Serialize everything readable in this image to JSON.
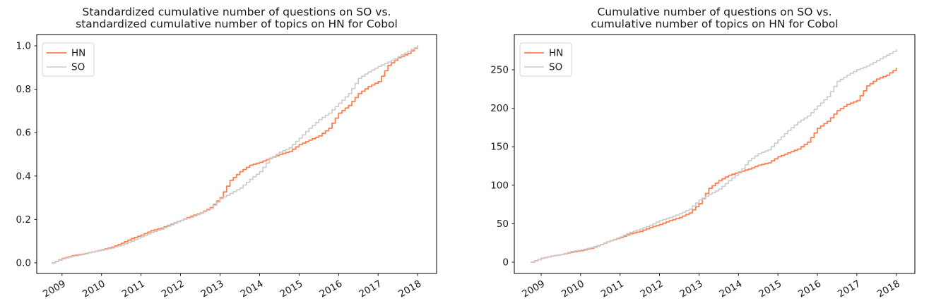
{
  "page": {
    "background": "#ffffff"
  },
  "colors": {
    "hn": "#FF7F50",
    "so": "#CBCBCB",
    "axis": "#000000",
    "text": "#1a1a1a",
    "legend_border": "#d5d5d5"
  },
  "chart_data": [
    {
      "type": "line",
      "title_lines": [
        "Standardized cumulative number of questions on SO vs.",
        "standardized cumulative number of topics on HN for Cobol"
      ],
      "xlabel": "",
      "ylabel": "",
      "grid": false,
      "x": [
        2008.75,
        2009.0,
        2009.25,
        2009.5,
        2009.75,
        2010.0,
        2010.25,
        2010.5,
        2010.75,
        2011.0,
        2011.25,
        2011.5,
        2011.75,
        2012.0,
        2012.25,
        2012.5,
        2012.75,
        2013.0,
        2013.25,
        2013.5,
        2013.75,
        2014.0,
        2014.25,
        2014.5,
        2014.75,
        2015.0,
        2015.25,
        2015.5,
        2015.75,
        2016.0,
        2016.25,
        2016.5,
        2016.75,
        2017.0,
        2017.25,
        2017.5,
        2017.75,
        2018.0
      ],
      "series": [
        {
          "name": "HN",
          "color_key": "hn",
          "stroke_width": 1.8,
          "values": [
            0.0,
            0.02,
            0.033,
            0.04,
            0.05,
            0.06,
            0.072,
            0.09,
            0.112,
            0.128,
            0.148,
            0.16,
            0.178,
            0.196,
            0.215,
            0.23,
            0.255,
            0.3,
            0.38,
            0.42,
            0.45,
            0.463,
            0.482,
            0.5,
            0.513,
            0.545,
            0.565,
            0.585,
            0.62,
            0.69,
            0.725,
            0.78,
            0.812,
            0.835,
            0.91,
            0.945,
            0.965,
            1.0
          ]
        },
        {
          "name": "SO",
          "color_key": "so",
          "stroke_width": 1.6,
          "values": [
            0.0,
            0.018,
            0.03,
            0.038,
            0.05,
            0.058,
            0.068,
            0.082,
            0.1,
            0.12,
            0.14,
            0.155,
            0.175,
            0.196,
            0.21,
            0.228,
            0.25,
            0.295,
            0.32,
            0.345,
            0.385,
            0.42,
            0.48,
            0.51,
            0.53,
            0.575,
            0.62,
            0.66,
            0.69,
            0.735,
            0.78,
            0.85,
            0.88,
            0.905,
            0.925,
            0.95,
            0.975,
            1.0
          ]
        }
      ],
      "xticks": [
        2009,
        2010,
        2011,
        2012,
        2013,
        2014,
        2015,
        2016,
        2017,
        2018
      ],
      "xtick_labels": [
        "2009",
        "2010",
        "2011",
        "2012",
        "2013",
        "2014",
        "2015",
        "2016",
        "2017",
        "2018"
      ],
      "yticks": [
        0.0,
        0.2,
        0.4,
        0.6,
        0.8,
        1.0
      ],
      "ytick_labels": [
        "0.0",
        "0.2",
        "0.4",
        "0.6",
        "0.8",
        "1.0"
      ],
      "xlim": [
        2008.36,
        2018.48
      ],
      "ylim": [
        -0.049,
        1.052
      ],
      "legend": {
        "position": "upper left",
        "entries": [
          "HN",
          "SO"
        ]
      }
    },
    {
      "type": "line",
      "title_lines": [
        "Cumulative number of questions on SO vs.",
        "cumulative number of topics on HN for Cobol"
      ],
      "xlabel": "",
      "ylabel": "",
      "grid": false,
      "x": [
        2008.75,
        2009.0,
        2009.25,
        2009.5,
        2009.75,
        2010.0,
        2010.25,
        2010.5,
        2010.75,
        2011.0,
        2011.25,
        2011.5,
        2011.75,
        2012.0,
        2012.25,
        2012.5,
        2012.75,
        2013.0,
        2013.25,
        2013.5,
        2013.75,
        2014.0,
        2014.25,
        2014.5,
        2014.75,
        2015.0,
        2015.25,
        2015.5,
        2015.75,
        2016.0,
        2016.25,
        2016.5,
        2016.75,
        2017.0,
        2017.25,
        2017.5,
        2017.75,
        2018.0
      ],
      "series": [
        {
          "name": "HN",
          "color_key": "hn",
          "stroke_width": 1.8,
          "values": [
            0,
            5,
            8,
            10,
            13,
            15,
            18,
            23,
            28,
            32,
            37,
            40,
            45,
            49,
            54,
            58,
            64,
            76,
            96,
            106,
            113,
            117,
            121,
            126,
            129,
            137,
            142,
            147,
            156,
            174,
            183,
            197,
            205,
            210,
            229,
            238,
            243,
            252
          ]
        },
        {
          "name": "SO",
          "color_key": "so",
          "stroke_width": 1.6,
          "values": [
            0,
            5,
            8,
            10,
            14,
            16,
            19,
            23,
            28,
            33,
            39,
            43,
            48,
            54,
            58,
            63,
            69,
            81,
            88,
            95,
            106,
            116,
            132,
            141,
            146,
            159,
            171,
            182,
            190,
            203,
            215,
            235,
            243,
            250,
            255,
            262,
            269,
            276
          ]
        }
      ],
      "xticks": [
        2009,
        2010,
        2011,
        2012,
        2013,
        2014,
        2015,
        2016,
        2017,
        2018
      ],
      "xtick_labels": [
        "2009",
        "2010",
        "2011",
        "2012",
        "2013",
        "2014",
        "2015",
        "2016",
        "2017",
        "2018"
      ],
      "yticks": [
        0,
        50,
        100,
        150,
        200,
        250
      ],
      "ytick_labels": [
        "0",
        "50",
        "100",
        "150",
        "200",
        "250"
      ],
      "xlim": [
        2008.32,
        2018.47
      ],
      "ylim": [
        -14.65,
        295.8
      ],
      "legend": {
        "position": "upper left",
        "entries": [
          "HN",
          "SO"
        ]
      }
    }
  ]
}
